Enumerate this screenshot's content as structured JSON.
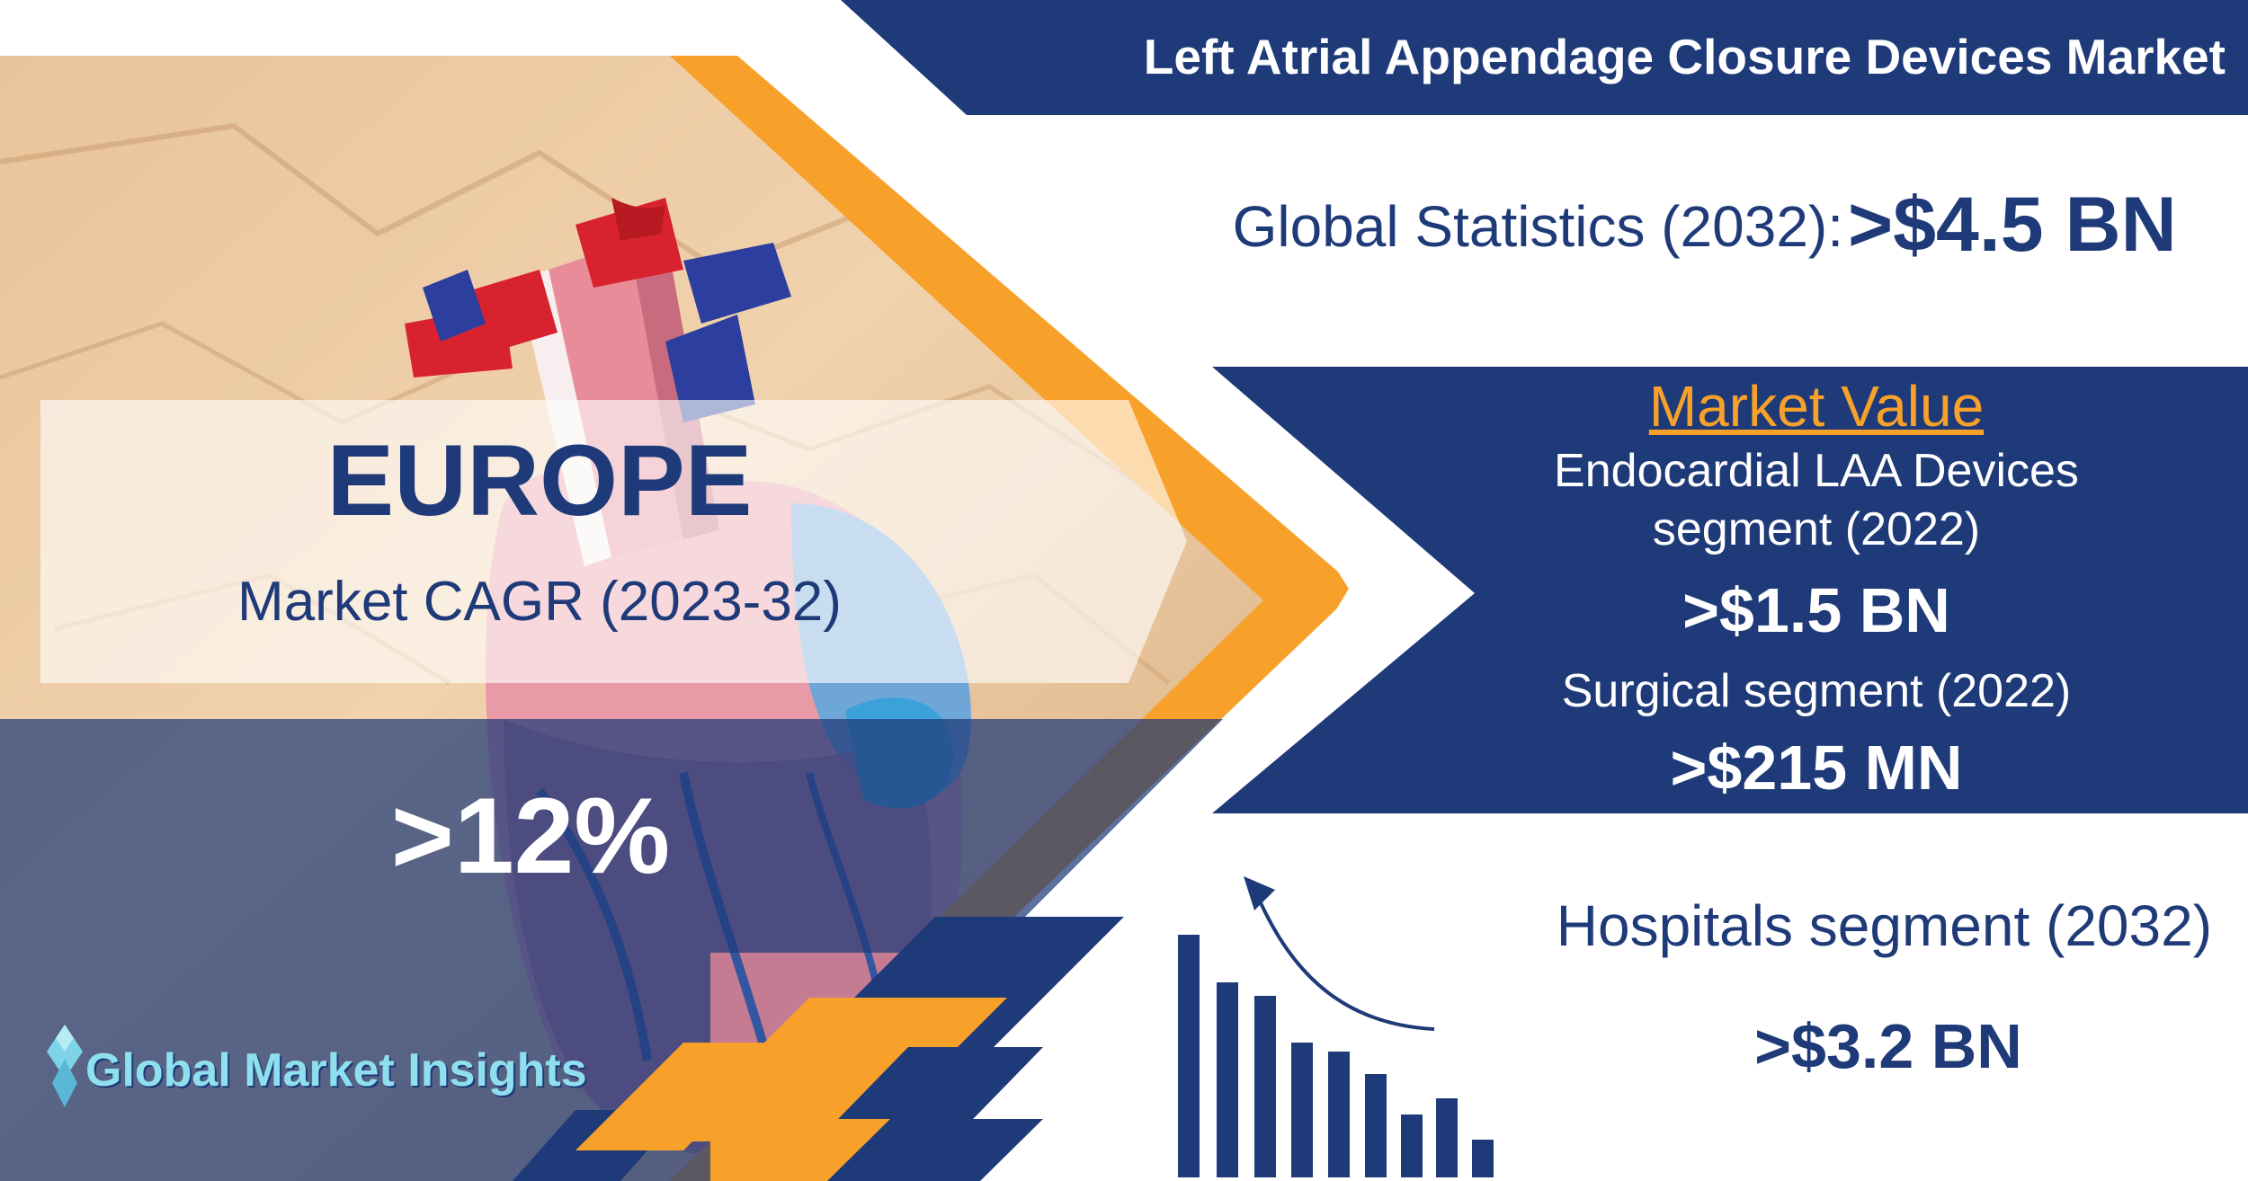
{
  "header": {
    "title": "Left Atrial Appendage Closure Devices Market"
  },
  "global_stats": {
    "label": "Global Statistics (2032):",
    "value": ">$4.5 BN"
  },
  "region": {
    "name": "EUROPE",
    "cagr_label": "Market CAGR (2023-32)",
    "cagr_value": ">12%"
  },
  "market_value": {
    "heading": "Market Value",
    "endocardial_label_line1": "Endocardial LAA Devices",
    "endocardial_label_line2": "segment (2022)",
    "endocardial_value": ">$1.5 BN",
    "surgical_label": "Surgical segment (2022)",
    "surgical_value": ">$215 MN"
  },
  "hospitals": {
    "label": "Hospitals segment (2032)",
    "value": ">$3.2 BN"
  },
  "logo": {
    "text": "Global Market Insights"
  },
  "colors": {
    "navy": "#1f3a78",
    "orange": "#f7a12b",
    "white": "#ffffff"
  },
  "icons": [
    "heart-photo",
    "bar-chart-icon",
    "growth-arrow-icon",
    "diamond-logo-icon"
  ]
}
